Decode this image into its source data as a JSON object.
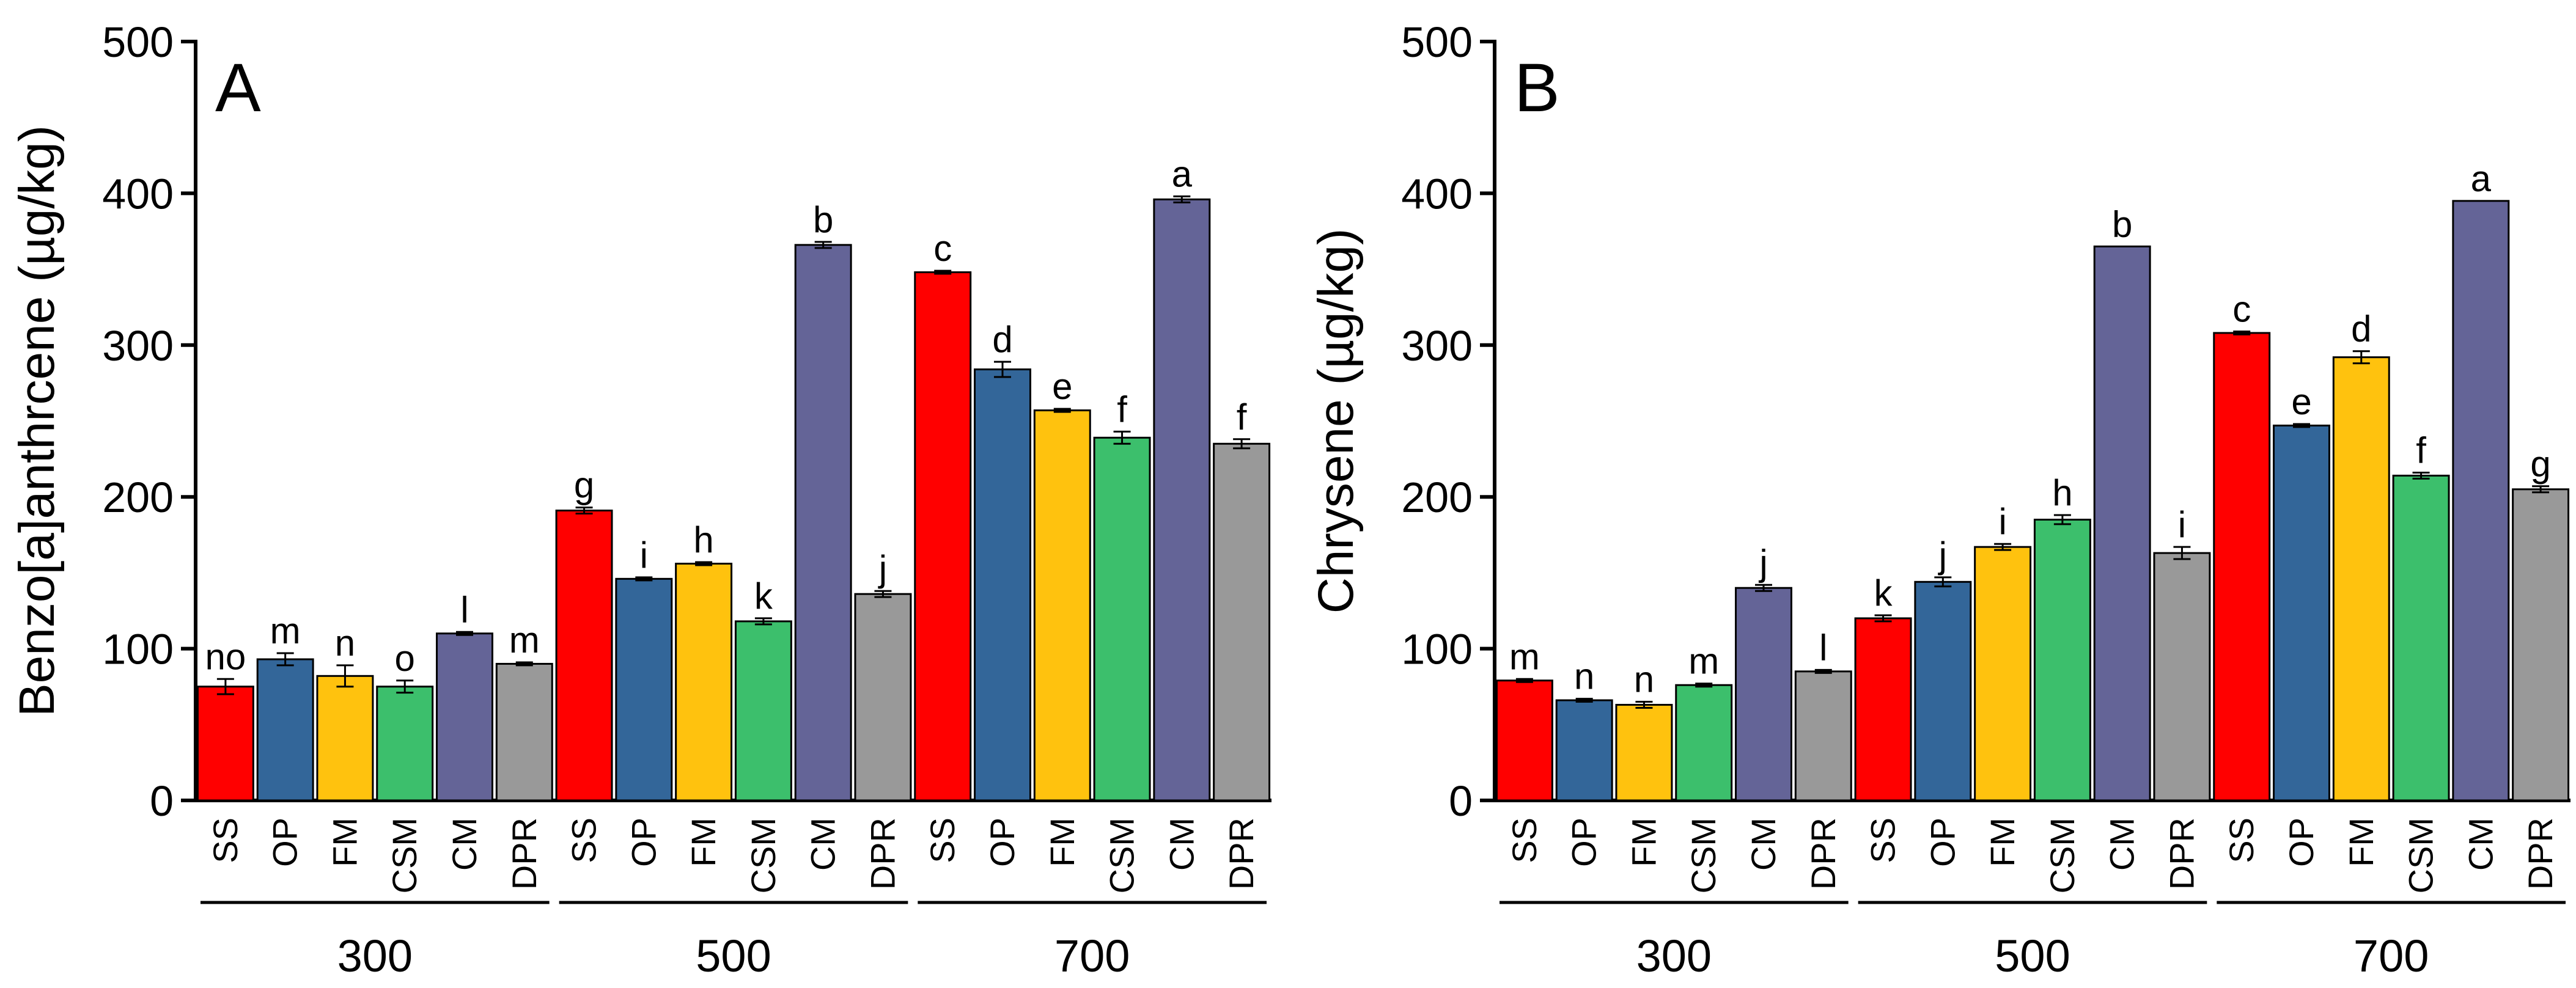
{
  "colors": {
    "SS": "#ff0000",
    "OP": "#336699",
    "FM": "#ffc20e",
    "CSM": "#3cbf6c",
    "CM": "#646497",
    "DPR": "#999999"
  },
  "chart_data": [
    {
      "type": "bar",
      "panel_label": "A",
      "ylabel": "Benzo[a]anthrcene (µg/kg)",
      "ylim": [
        0,
        500
      ],
      "yticks": [
        0,
        100,
        200,
        300,
        400,
        500
      ],
      "grid": false,
      "categories": [
        "SS",
        "OP",
        "FM",
        "CSM",
        "CM",
        "DPR"
      ],
      "groups": [
        {
          "label": "300",
          "values": [
            75,
            93,
            82,
            75,
            110,
            90
          ],
          "errors": [
            5,
            4,
            7,
            4,
            1,
            1
          ],
          "letters": [
            "no",
            "m",
            "n",
            "o",
            "l",
            "m"
          ]
        },
        {
          "label": "500",
          "values": [
            191,
            146,
            156,
            118,
            366,
            136
          ],
          "errors": [
            2,
            1,
            1,
            2,
            2,
            2
          ],
          "letters": [
            "g",
            "i",
            "h",
            "k",
            "b",
            "j"
          ]
        },
        {
          "label": "700",
          "values": [
            348,
            284,
            257,
            239,
            396,
            235
          ],
          "errors": [
            1,
            5,
            1,
            4,
            2,
            3
          ],
          "letters": [
            "c",
            "d",
            "e",
            "f",
            "a",
            "f"
          ]
        }
      ]
    },
    {
      "type": "bar",
      "panel_label": "B",
      "ylabel": "Chrysene (µg/kg)",
      "ylim": [
        0,
        500
      ],
      "yticks": [
        0,
        100,
        200,
        300,
        400,
        500
      ],
      "grid": false,
      "categories": [
        "SS",
        "OP",
        "FM",
        "CSM",
        "CM",
        "DPR"
      ],
      "groups": [
        {
          "label": "300",
          "values": [
            79,
            66,
            63,
            76,
            140,
            85
          ],
          "errors": [
            1,
            1,
            2,
            1,
            2,
            1
          ],
          "letters": [
            "m",
            "n",
            "n",
            "m",
            "j",
            "l"
          ]
        },
        {
          "label": "500",
          "values": [
            120,
            144,
            167,
            185,
            365,
            163
          ],
          "errors": [
            2,
            3,
            2,
            3,
            0,
            4
          ],
          "letters": [
            "k",
            "j",
            "i",
            "h",
            "b",
            "i"
          ]
        },
        {
          "label": "700",
          "values": [
            308,
            247,
            292,
            214,
            395,
            205
          ],
          "errors": [
            1,
            1,
            4,
            2,
            0,
            2
          ],
          "letters": [
            "c",
            "e",
            "d",
            "f",
            "a",
            "g"
          ]
        }
      ]
    }
  ]
}
